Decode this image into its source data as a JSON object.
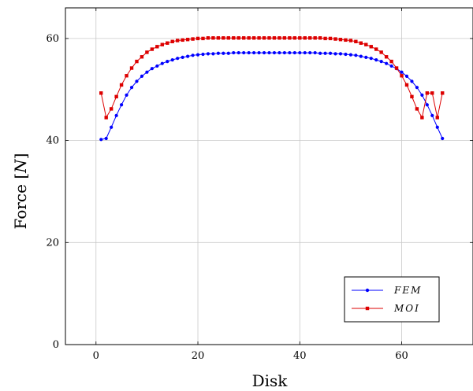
{
  "chart_data": {
    "type": "line",
    "title": "",
    "xlabel": "Disk",
    "ylabel_main": "Force [",
    "ylabel_unit": "N",
    "ylabel_close": "]",
    "xlim": [
      -6,
      74
    ],
    "ylim": [
      0,
      66
    ],
    "xticks": [
      0,
      20,
      40,
      60
    ],
    "yticks": [
      0,
      20,
      40,
      60
    ],
    "grid": true,
    "legend_position": "bottom-right",
    "series": [
      {
        "name": "FEM",
        "color": "#0000ff",
        "marker": "circle",
        "x": [
          1,
          2,
          3,
          4,
          5,
          6,
          7,
          8,
          9,
          10,
          11,
          12,
          13,
          14,
          15,
          16,
          17,
          18,
          19,
          20,
          21,
          22,
          23,
          24,
          25,
          26,
          27,
          28,
          29,
          30,
          31,
          32,
          33,
          34,
          35,
          36,
          37,
          38,
          39,
          40,
          41,
          42,
          43,
          44,
          45,
          46,
          47,
          48,
          49,
          50,
          51,
          52,
          53,
          54,
          55,
          56,
          57,
          58,
          59,
          60,
          61,
          62,
          63,
          64,
          65,
          66,
          67,
          68
        ],
        "values": [
          40.2,
          40.4,
          42.6,
          44.9,
          47.0,
          48.9,
          50.4,
          51.6,
          52.6,
          53.4,
          54.1,
          54.6,
          55.1,
          55.5,
          55.8,
          56.1,
          56.3,
          56.5,
          56.7,
          56.8,
          56.9,
          57.0,
          57.0,
          57.1,
          57.1,
          57.1,
          57.2,
          57.2,
          57.2,
          57.2,
          57.2,
          57.2,
          57.2,
          57.2,
          57.2,
          57.2,
          57.2,
          57.2,
          57.2,
          57.2,
          57.2,
          57.2,
          57.2,
          57.1,
          57.1,
          57.1,
          57.0,
          57.0,
          56.9,
          56.8,
          56.7,
          56.5,
          56.3,
          56.1,
          55.8,
          55.5,
          55.1,
          54.6,
          54.1,
          53.4,
          52.6,
          51.6,
          50.4,
          48.9,
          47.0,
          44.9,
          42.6,
          40.4
        ]
      },
      {
        "name": "MOI",
        "color": "#dd0000",
        "marker": "square",
        "x": [
          1,
          2,
          3,
          4,
          5,
          6,
          7,
          8,
          9,
          10,
          11,
          12,
          13,
          14,
          15,
          16,
          17,
          18,
          19,
          20,
          21,
          22,
          23,
          24,
          25,
          26,
          27,
          28,
          29,
          30,
          31,
          32,
          33,
          34,
          35,
          36,
          37,
          38,
          39,
          40,
          41,
          42,
          43,
          44,
          45,
          46,
          47,
          48,
          49,
          50,
          51,
          52,
          53,
          54,
          55,
          56,
          57,
          58,
          59,
          60,
          61,
          62,
          63,
          64,
          65,
          66,
          67,
          68
        ],
        "values": [
          49.3,
          44.5,
          46.2,
          48.6,
          50.9,
          52.7,
          54.2,
          55.5,
          56.4,
          57.3,
          57.9,
          58.4,
          58.8,
          59.1,
          59.4,
          59.6,
          59.7,
          59.8,
          59.9,
          60.0,
          60.0,
          60.1,
          60.1,
          60.1,
          60.1,
          60.1,
          60.1,
          60.1,
          60.1,
          60.1,
          60.1,
          60.1,
          60.1,
          60.1,
          60.1,
          60.1,
          60.1,
          60.1,
          60.1,
          60.1,
          60.1,
          60.1,
          60.1,
          60.1,
          60.0,
          60.0,
          59.9,
          59.8,
          59.7,
          59.6,
          59.4,
          59.1,
          58.8,
          58.4,
          57.9,
          57.3,
          56.4,
          55.5,
          54.2,
          52.7,
          50.9,
          48.6,
          46.2,
          44.5,
          49.3,
          49.3,
          44.5,
          49.3
        ]
      }
    ]
  }
}
